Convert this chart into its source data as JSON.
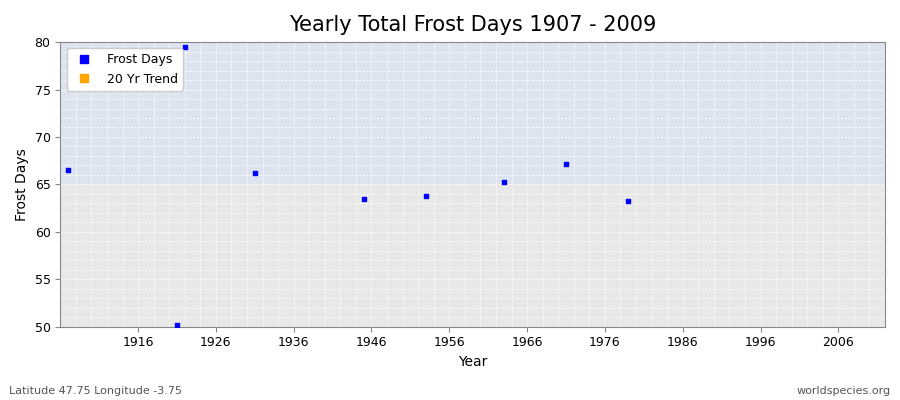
{
  "title": "Yearly Total Frost Days 1907 - 2009",
  "xlabel": "Year",
  "ylabel": "Frost Days",
  "xlim": [
    1906,
    2012
  ],
  "ylim": [
    50,
    80
  ],
  "xticks": [
    1916,
    1926,
    1936,
    1946,
    1956,
    1966,
    1976,
    1986,
    1996,
    2006
  ],
  "yticks": [
    50,
    55,
    60,
    65,
    70,
    75,
    80
  ],
  "scatter_x": [
    1907,
    1921,
    1922,
    1931,
    1945,
    1953,
    1963,
    1971,
    1979
  ],
  "scatter_y": [
    66.5,
    50.2,
    79.5,
    66.2,
    63.5,
    63.8,
    65.3,
    67.2,
    63.2
  ],
  "scatter_color": "#0000ff",
  "scatter_size": 8,
  "bg_upper_color": "#dde4ef",
  "bg_lower_color": "#e8e8e8",
  "bg_split_y": 65,
  "figure_bg": "#ffffff",
  "grid_color": "#ffffff",
  "legend_frost_label": "Frost Days",
  "legend_trend_label": "20 Yr Trend",
  "legend_frost_color": "#0000ff",
  "legend_trend_color": "#ffa500",
  "subtitle_left": "Latitude 47.75 Longitude -3.75",
  "subtitle_right": "worldspecies.org",
  "title_fontsize": 15,
  "axis_label_fontsize": 10,
  "tick_fontsize": 9,
  "subtitle_fontsize": 8
}
